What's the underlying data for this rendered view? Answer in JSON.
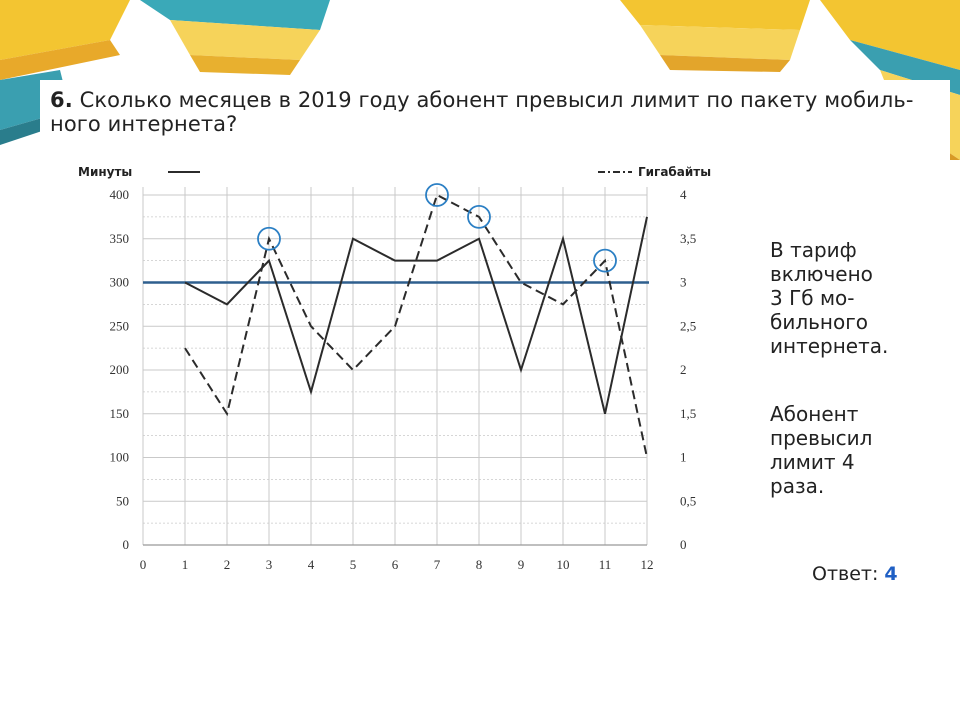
{
  "question": {
    "number": "6.",
    "text_line1": "Сколько месяцев в 2019 году абонент превысил лимит по пакету мобиль-",
    "text_line2": "ного интернета?"
  },
  "note": {
    "line1": "В тариф",
    "line2": "включено",
    "line3": "3 Гб мо-",
    "line4": "бильного",
    "line5": "интернета.",
    "line6": "Абонент",
    "line7": "превысил",
    "line8": "лимит 4",
    "line9": "раза."
  },
  "answer": {
    "label": "Ответ:",
    "value": "4"
  },
  "colors": {
    "grid": "#c9c9c9",
    "minutes_line": "#2b2b2b",
    "gb_line": "#2b2b2b",
    "limit_line": "#2e5f8e",
    "circle": "#2b7fc4",
    "answer_value": "#1f5fc4"
  },
  "chart_data": {
    "type": "line",
    "x": [
      1,
      2,
      3,
      4,
      5,
      6,
      7,
      8,
      9,
      10,
      11,
      12
    ],
    "x_ticks": [
      "0",
      "1",
      "2",
      "3",
      "4",
      "5",
      "6",
      "7",
      "8",
      "9",
      "10",
      "11",
      "12"
    ],
    "xlim": [
      0,
      12
    ],
    "y_left_ticks": [
      "0",
      "50",
      "100",
      "150",
      "200",
      "250",
      "300",
      "350",
      "400"
    ],
    "y_right_ticks": [
      "0",
      "0,5",
      "1",
      "1,5",
      "2",
      "2,5",
      "3",
      "3,5",
      "4"
    ],
    "ylim_left": [
      0,
      400
    ],
    "ylim_right": [
      0,
      4
    ],
    "grid": true,
    "series": [
      {
        "name": "Минуты",
        "axis": "left",
        "style": "solid",
        "values": [
          300,
          275,
          325,
          175,
          350,
          325,
          325,
          350,
          200,
          350,
          150,
          375
        ]
      },
      {
        "name": "Гигабайты",
        "axis": "right",
        "style": "dashed",
        "values": [
          2.25,
          1.5,
          3.5,
          2.5,
          2,
          2.5,
          4,
          3.75,
          3,
          2.75,
          3.25,
          1
        ]
      }
    ],
    "limit_value_right": 3,
    "circled_months": [
      3,
      7,
      8,
      11
    ]
  }
}
